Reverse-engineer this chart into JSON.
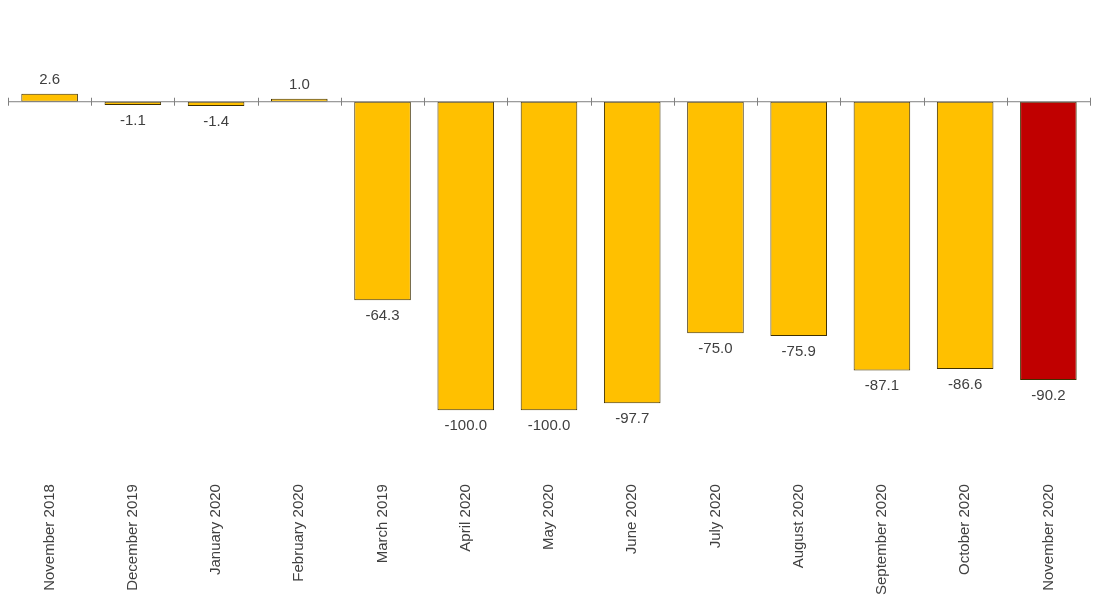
{
  "chart_data": {
    "type": "bar",
    "categories": [
      "November 2018",
      "December 2019",
      "January 2020",
      "February 2020",
      "March 2019",
      "April 2020",
      "May 2020",
      "June 2020",
      "July 2020",
      "August 2020",
      "September 2020",
      "October 2020",
      "November 2020"
    ],
    "values": [
      2.6,
      -1.1,
      -1.4,
      1.0,
      -64.3,
      -100.0,
      -100.0,
      -97.7,
      -75.0,
      -75.9,
      -87.1,
      -86.6,
      -90.2
    ],
    "colors": [
      "#ffc000",
      "#ffc000",
      "#ffc000",
      "#ffc000",
      "#ffc000",
      "#ffc000",
      "#ffc000",
      "#ffc000",
      "#ffc000",
      "#ffc000",
      "#ffc000",
      "#ffc000",
      "#c00000"
    ],
    "value_labels": [
      "2.6",
      "-1.1",
      "-1.4",
      "1.0",
      "-64.3",
      "-100.0",
      "-100.0",
      "-97.7",
      "-75.0",
      "-75.9",
      "-87.1",
      "-86.6",
      "-90.2"
    ],
    "grid": false,
    "legend": false
  }
}
